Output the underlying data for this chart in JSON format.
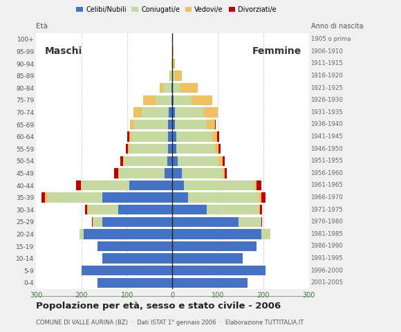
{
  "age_groups": [
    "0-4",
    "5-9",
    "10-14",
    "15-19",
    "20-24",
    "25-29",
    "30-34",
    "35-39",
    "40-44",
    "45-49",
    "50-54",
    "55-59",
    "60-64",
    "65-69",
    "70-74",
    "75-79",
    "80-84",
    "85-89",
    "90-94",
    "95-99",
    "100+"
  ],
  "birth_years": [
    "2001-2005",
    "1996-2000",
    "1991-1995",
    "1986-1990",
    "1981-1985",
    "1976-1980",
    "1971-1975",
    "1966-1970",
    "1961-1965",
    "1956-1960",
    "1951-1955",
    "1946-1950",
    "1941-1945",
    "1936-1940",
    "1931-1935",
    "1926-1930",
    "1921-1925",
    "1916-1920",
    "1911-1915",
    "1906-1910",
    "1905 o prima"
  ],
  "males": {
    "celibi": [
      165,
      200,
      155,
      165,
      195,
      155,
      120,
      155,
      95,
      18,
      12,
      10,
      10,
      10,
      8,
      2,
      2,
      0,
      0,
      0,
      0
    ],
    "coniugati": [
      0,
      0,
      0,
      0,
      10,
      20,
      65,
      120,
      105,
      100,
      95,
      85,
      80,
      75,
      60,
      35,
      18,
      5,
      2,
      0,
      0
    ],
    "vedovi": [
      0,
      0,
      0,
      0,
      0,
      0,
      2,
      5,
      2,
      2,
      2,
      3,
      5,
      8,
      18,
      28,
      8,
      2,
      0,
      0,
      0
    ],
    "divorziati": [
      0,
      0,
      0,
      0,
      0,
      2,
      5,
      8,
      10,
      8,
      5,
      5,
      5,
      0,
      0,
      0,
      0,
      0,
      0,
      0,
      0
    ]
  },
  "females": {
    "nubili": [
      165,
      205,
      155,
      185,
      195,
      145,
      75,
      35,
      25,
      20,
      12,
      8,
      8,
      5,
      5,
      2,
      0,
      0,
      0,
      0,
      0
    ],
    "coniugate": [
      0,
      0,
      0,
      0,
      20,
      50,
      115,
      155,
      155,
      90,
      90,
      85,
      80,
      70,
      65,
      40,
      18,
      5,
      0,
      0,
      0
    ],
    "vedove": [
      0,
      0,
      0,
      0,
      0,
      0,
      2,
      5,
      5,
      5,
      8,
      8,
      10,
      18,
      30,
      45,
      38,
      15,
      5,
      2,
      0
    ],
    "divorziate": [
      0,
      0,
      0,
      0,
      0,
      2,
      5,
      10,
      10,
      5,
      5,
      5,
      5,
      2,
      0,
      0,
      0,
      0,
      0,
      0,
      0
    ]
  },
  "colors": {
    "celibi": "#4472c4",
    "coniugati": "#c5d9a0",
    "vedovi": "#f0c060",
    "divorziati": "#c00000"
  },
  "legend_labels": [
    "Celibi/Nubili",
    "Coniugati/e",
    "Vedovi/e",
    "Divorziati/e"
  ],
  "title": "Popolazione per età, sesso e stato civile - 2006",
  "subtitle": "COMUNE DI VALLE AURINA (BZ)  ·  Dati ISTAT 1° gennaio 2006  ·  Elaborazione TUTTITALIA.IT",
  "label_eta": "Età",
  "label_anno": "Anno di nascita",
  "label_maschi": "Maschi",
  "label_femmine": "Femmine",
  "xlim": 300,
  "bg_color": "#f0f0f0",
  "plot_bg": "#ffffff"
}
